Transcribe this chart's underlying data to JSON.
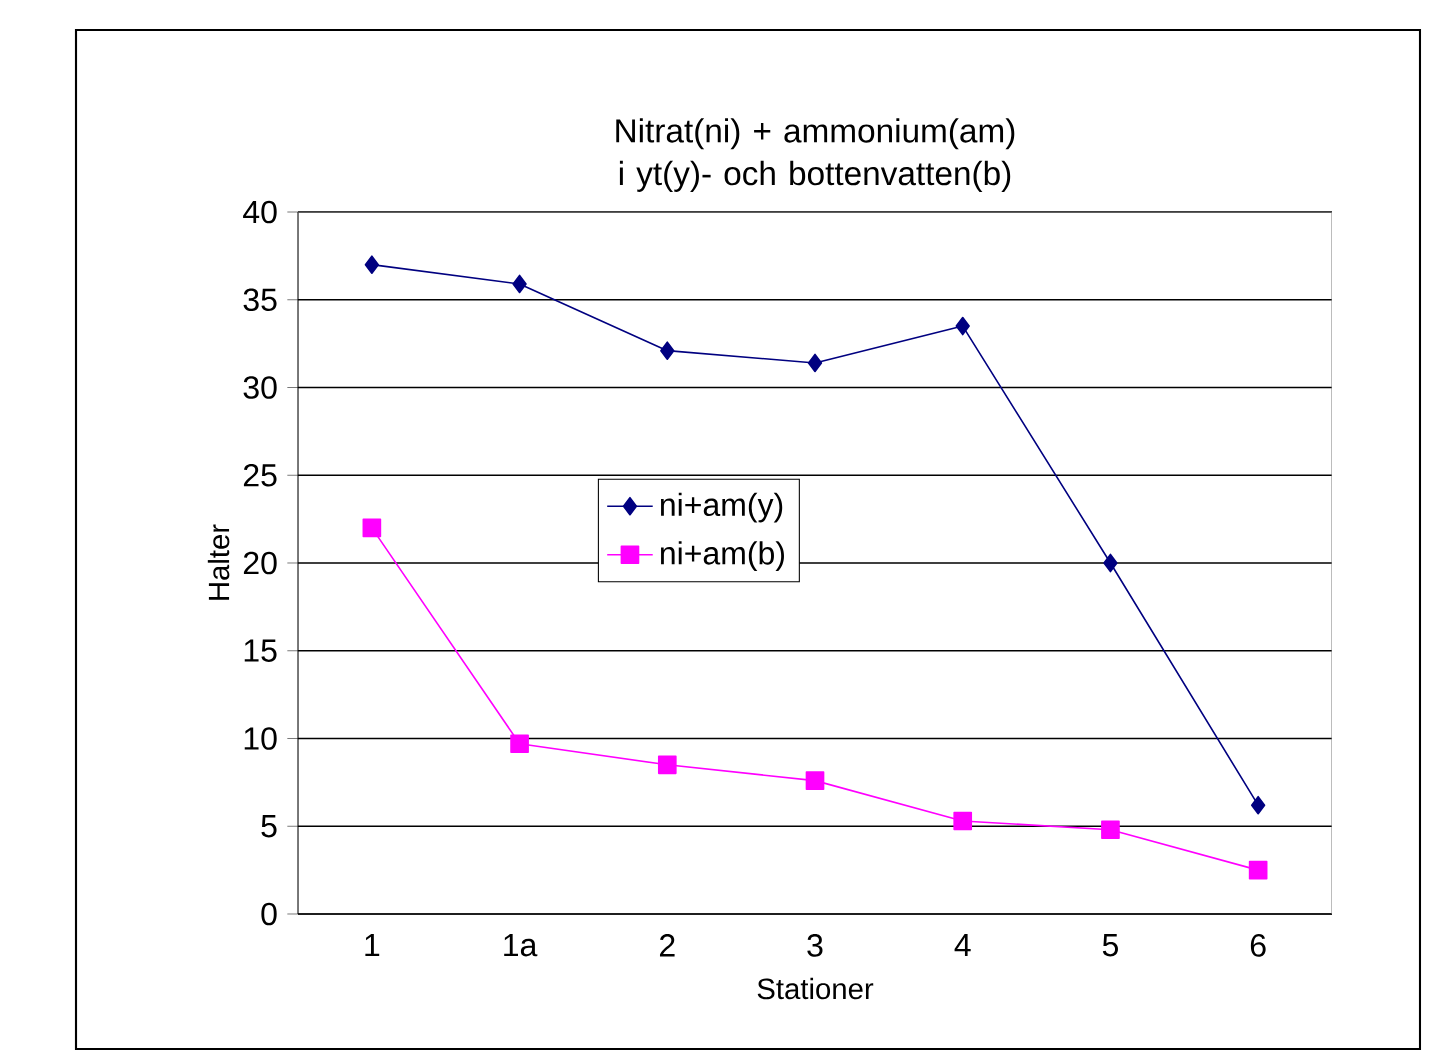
{
  "chart_data": {
    "type": "line",
    "title": "Nitrat(ni) + ammonium(am) i yt(y)- och bottenvatten(b)",
    "xlabel": "Stationer",
    "ylabel": "Halter",
    "categories": [
      "1",
      "1a",
      "2",
      "3",
      "4",
      "5",
      "6"
    ],
    "series": [
      {
        "name": "ni+am(y)",
        "color": "#000080",
        "marker": "diamond",
        "values": [
          37,
          35.9,
          32.1,
          31.4,
          33.5,
          20,
          6.2
        ]
      },
      {
        "name": "ni+am(b)",
        "color": "#ff00ff",
        "marker": "square",
        "values": [
          22,
          9.7,
          8.5,
          7.6,
          5.3,
          4.8,
          2.5
        ]
      }
    ],
    "ylim": [
      0,
      40
    ],
    "yticks": [
      0,
      5,
      10,
      15,
      20,
      25,
      30,
      35,
      40
    ],
    "grid": "y",
    "legend": "center",
    "line_style": "solid"
  }
}
